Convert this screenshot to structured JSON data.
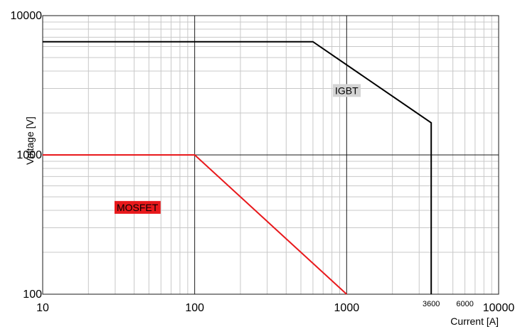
{
  "chart_data": {
    "type": "line",
    "title": "",
    "xlabel": "Current [A]",
    "ylabel": "Voltage [V]",
    "x_scale": "log",
    "y_scale": "log",
    "xlim": [
      10,
      10000
    ],
    "ylim": [
      100,
      10000
    ],
    "grid": true,
    "x_ticks": [
      {
        "value": 10,
        "label": "10",
        "size": "major"
      },
      {
        "value": 100,
        "label": "100",
        "size": "major"
      },
      {
        "value": 1000,
        "label": "1000",
        "size": "major"
      },
      {
        "value": 3600,
        "label": "3600",
        "size": "minor"
      },
      {
        "value": 6000,
        "label": "6000",
        "size": "minor"
      },
      {
        "value": 10000,
        "label": "10000",
        "size": "major"
      }
    ],
    "y_ticks": [
      {
        "value": 100,
        "label": "100"
      },
      {
        "value": 1000,
        "label": "1000"
      },
      {
        "value": 10000,
        "label": "10000"
      }
    ],
    "series": [
      {
        "name": "IGBT",
        "color": "#000000",
        "label_bg": "#d4d4d4",
        "label_color": "#000000",
        "label_at": [
          1000,
          2900
        ],
        "points": [
          [
            10,
            6500
          ],
          [
            600,
            6500
          ],
          [
            3600,
            1700
          ],
          [
            3600,
            100
          ]
        ]
      },
      {
        "name": "MOSFET",
        "color": "#e8191c",
        "label_bg": "#e8191c",
        "label_color": "#000000",
        "label_at": [
          42,
          420
        ],
        "points": [
          [
            10,
            1000
          ],
          [
            100,
            1000
          ],
          [
            1000,
            100
          ]
        ]
      }
    ]
  }
}
